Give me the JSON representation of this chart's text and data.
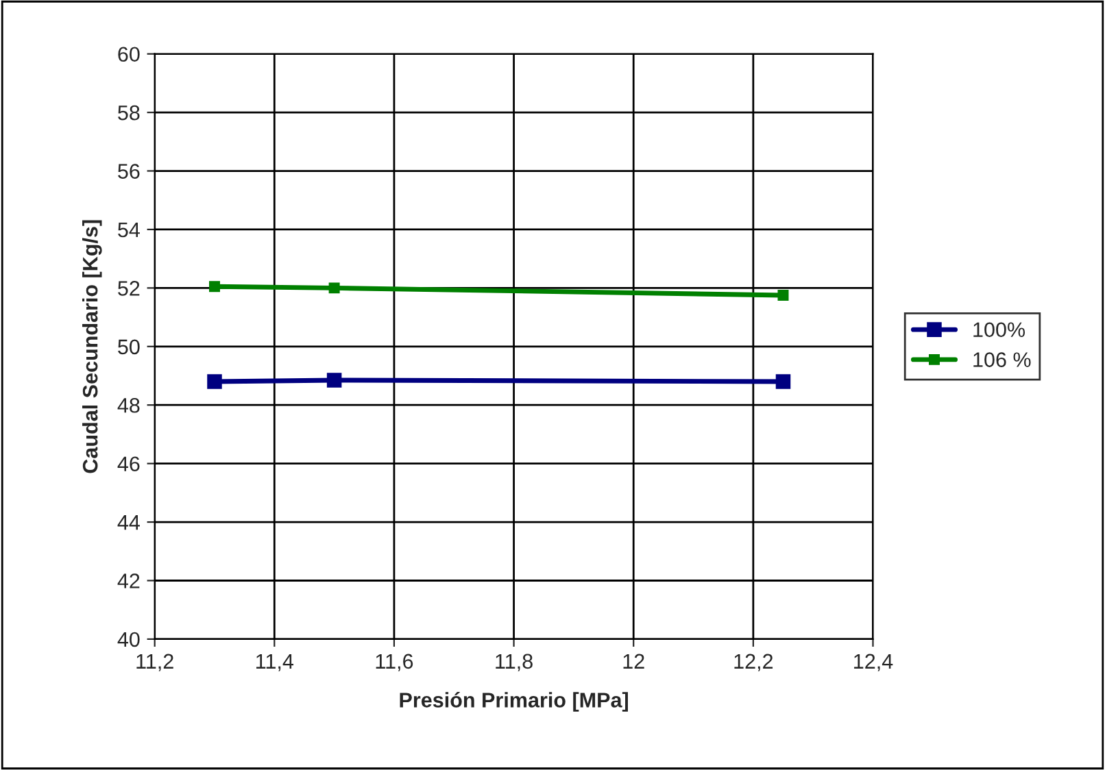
{
  "chart_data": {
    "type": "line",
    "xlabel": "Presión Primario [MPa]",
    "ylabel": "Caudal Secundario [Kg/s]",
    "x": [
      11.3,
      11.5,
      12.25
    ],
    "series": [
      {
        "name": "100%",
        "color": "#000080",
        "values": [
          48.8,
          48.85,
          48.8
        ]
      },
      {
        "name": "106 %",
        "color": "#008000",
        "values": [
          52.05,
          52.0,
          51.75
        ]
      }
    ],
    "xlim": [
      11.2,
      12.4
    ],
    "xticks": [
      {
        "value": 11.2,
        "label": "11,2"
      },
      {
        "value": 11.4,
        "label": "11,4"
      },
      {
        "value": 11.6,
        "label": "11,6"
      },
      {
        "value": 11.8,
        "label": "11,8"
      },
      {
        "value": 12,
        "label": "12"
      },
      {
        "value": 12.2,
        "label": "12,2"
      },
      {
        "value": 12.4,
        "label": "12,4"
      }
    ],
    "ylim": [
      40,
      60
    ],
    "yticks": [
      40,
      42,
      44,
      46,
      48,
      50,
      52,
      54,
      56,
      58,
      60
    ],
    "grid": true,
    "legend": "right",
    "marker": "square",
    "line_style": "solid"
  }
}
